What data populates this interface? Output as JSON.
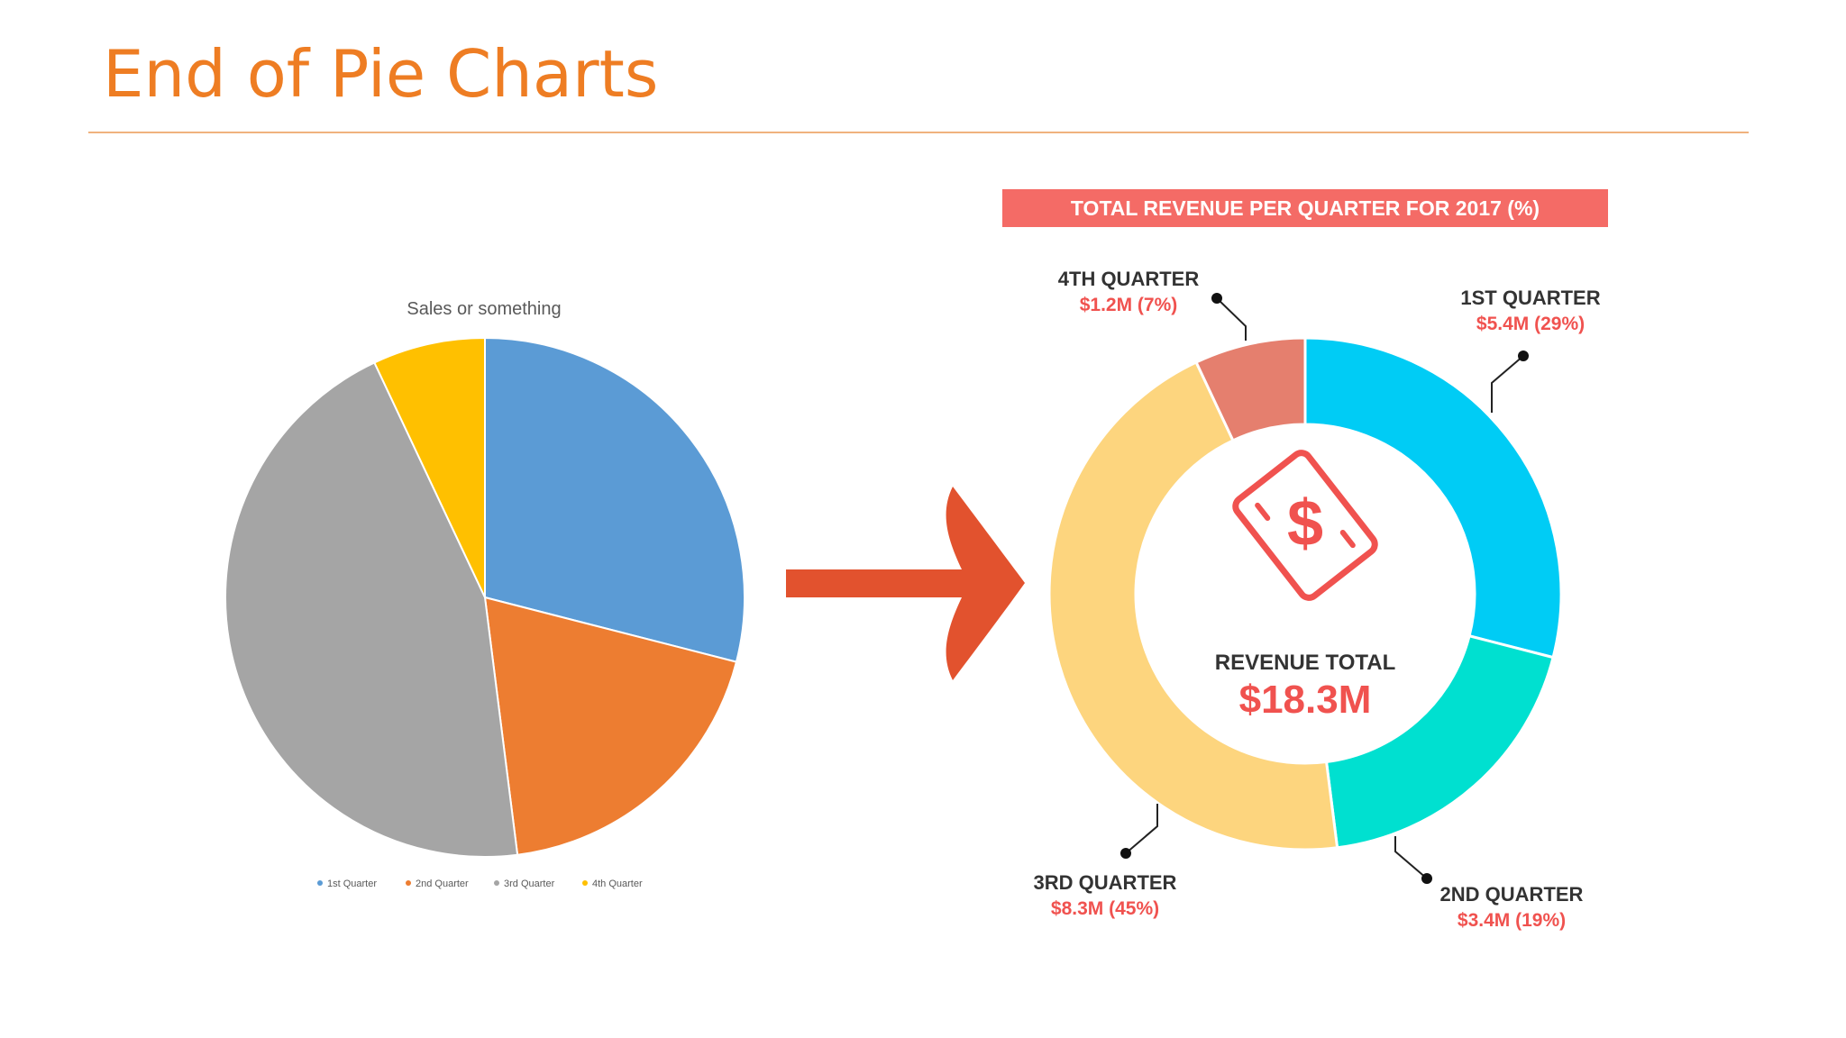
{
  "slide": {
    "title": "End of Pie Charts"
  },
  "chart_data": [
    {
      "type": "pie",
      "title": "Sales or something",
      "categories": [
        "1st Quarter",
        "2nd Quarter",
        "3rd Quarter",
        "4th Quarter"
      ],
      "values": [
        29,
        19,
        45,
        7
      ],
      "colors": [
        "#5b9bd5",
        "#ed7d31",
        "#a5a5a5",
        "#ffc000"
      ],
      "legend_position": "bottom"
    },
    {
      "type": "pie",
      "title": "TOTAL REVENUE PER QUARTER FOR 2017 (%)",
      "categories": [
        "1ST QUARTER",
        "2ND QUARTER",
        "3RD QUARTER",
        "4TH QUARTER"
      ],
      "values": [
        29,
        19,
        45,
        7
      ],
      "value_labels": [
        "$5.4M (29%)",
        "$3.4M (19%)",
        "$8.3M (45%)",
        "$1.2M (7%)"
      ],
      "colors": [
        "#00ccf5",
        "#00e0d0",
        "#fdd57e",
        "#e57f6e"
      ],
      "center_label": "REVENUE TOTAL",
      "center_value": "$18.3M",
      "donut": true
    }
  ],
  "icons": {
    "arrow": "right-arrow-icon",
    "money": "dollar-bill-icon"
  },
  "colors": {
    "title": "#ee7d23",
    "arrow": "#e2522e",
    "banner": "#f46b66",
    "label_value": "#f0524f",
    "label_name": "#333333"
  }
}
